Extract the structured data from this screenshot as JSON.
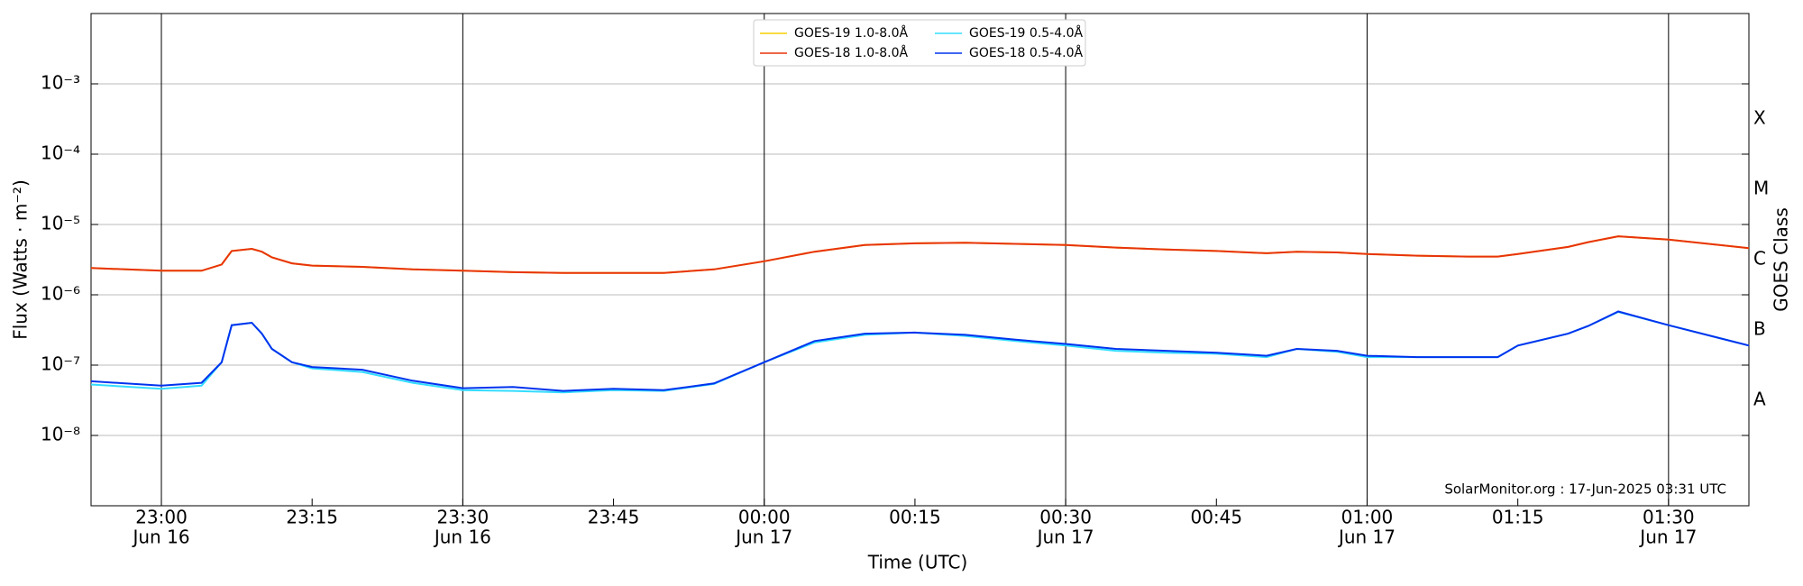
{
  "chart_data": {
    "type": "line",
    "x_label": "Time (UTC)",
    "y_label": "Flux (Watts · m⁻²)",
    "y2_label": "GOES Class",
    "annotation": "SolarMonitor.org : 17-Jun-2025 03:31 UTC",
    "log_scale": true,
    "grid": true,
    "legend": "top-center",
    "classes": [
      "A",
      "B",
      "C",
      "M",
      "X"
    ],
    "ylim": [
      1e-09,
      0.01
    ],
    "yticks": [
      {
        "value": 1e-08,
        "label": "10⁻⁸"
      },
      {
        "value": 1e-07,
        "label": "10⁻⁷"
      },
      {
        "value": 1e-06,
        "label": "10⁻⁶"
      },
      {
        "value": 1e-05,
        "label": "10⁻⁵"
      },
      {
        "value": 0.0001,
        "label": "10⁻⁴"
      },
      {
        "value": 0.001,
        "label": "10⁻³"
      }
    ],
    "xlim": [
      "Jun 16 22:53",
      "Jun 17 01:38"
    ],
    "xticks": [
      {
        "value": "Jun 16 23:00",
        "label": [
          "23:00",
          "Jun 16"
        ]
      },
      {
        "value": "Jun 16 23:15",
        "label": [
          "23:15"
        ]
      },
      {
        "value": "Jun 16 23:30",
        "label": [
          "23:30",
          "Jun 16"
        ]
      },
      {
        "value": "Jun 16 23:45",
        "label": [
          "23:45"
        ]
      },
      {
        "value": "Jun 17 00:00",
        "label": [
          "00:00",
          "Jun 17"
        ]
      },
      {
        "value": "Jun 17 00:15",
        "label": [
          "00:15"
        ]
      },
      {
        "value": "Jun 17 00:30",
        "label": [
          "00:30",
          "Jun 17"
        ]
      },
      {
        "value": "Jun 17 00:45",
        "label": [
          "00:45"
        ]
      },
      {
        "value": "Jun 17 01:00",
        "label": [
          "01:00",
          "Jun 17"
        ]
      },
      {
        "value": "Jun 17 01:15",
        "label": [
          "01:15"
        ]
      },
      {
        "value": "Jun 17 01:30",
        "label": [
          "01:30",
          "Jun 17"
        ]
      }
    ],
    "x": [
      "Jun 16 22:53",
      "Jun 16 23:00",
      "Jun 16 23:04",
      "Jun 16 23:06",
      "Jun 16 23:07",
      "Jun 16 23:09",
      "Jun 16 23:10",
      "Jun 16 23:11",
      "Jun 16 23:13",
      "Jun 16 23:15",
      "Jun 16 23:20",
      "Jun 16 23:25",
      "Jun 16 23:30",
      "Jun 16 23:35",
      "Jun 16 23:40",
      "Jun 16 23:45",
      "Jun 16 23:50",
      "Jun 16 23:55",
      "Jun 17 00:00",
      "Jun 17 00:05",
      "Jun 17 00:10",
      "Jun 17 00:15",
      "Jun 17 00:20",
      "Jun 17 00:25",
      "Jun 17 00:30",
      "Jun 17 00:35",
      "Jun 17 00:40",
      "Jun 17 00:45",
      "Jun 17 00:50",
      "Jun 17 00:53",
      "Jun 17 00:57",
      "Jun 17 01:00",
      "Jun 17 01:05",
      "Jun 17 01:10",
      "Jun 17 01:13",
      "Jun 17 01:15",
      "Jun 17 01:20",
      "Jun 17 01:22",
      "Jun 17 01:25",
      "Jun 17 01:30",
      "Jun 17 01:38"
    ],
    "series": [
      {
        "name": "GOES-19 1.0-8.0Å",
        "color": "#f5d000",
        "values": [
          2.4e-06,
          2.2e-06,
          2.2e-06,
          2.7e-06,
          4.2e-06,
          4.5e-06,
          4.1e-06,
          3.4e-06,
          2.8e-06,
          2.6e-06,
          2.5e-06,
          2.3e-06,
          2.2e-06,
          2.1e-06,
          2.05e-06,
          2.05e-06,
          2.05e-06,
          2.3e-06,
          3e-06,
          4.1e-06,
          5.1e-06,
          5.4e-06,
          5.5e-06,
          5.3e-06,
          5.1e-06,
          4.7e-06,
          4.4e-06,
          4.2e-06,
          3.9e-06,
          4.1e-06,
          4e-06,
          3.8e-06,
          3.6e-06,
          3.5e-06,
          3.5e-06,
          3.8e-06,
          4.8e-06,
          5.6e-06,
          6.8e-06,
          6.1e-06,
          4.6e-06
        ]
      },
      {
        "name": "GOES-18 1.0-8.0Å",
        "color": "#e8330c",
        "values": [
          2.4e-06,
          2.2e-06,
          2.2e-06,
          2.7e-06,
          4.2e-06,
          4.5e-06,
          4.1e-06,
          3.4e-06,
          2.8e-06,
          2.6e-06,
          2.5e-06,
          2.3e-06,
          2.2e-06,
          2.1e-06,
          2.05e-06,
          2.05e-06,
          2.05e-06,
          2.3e-06,
          3e-06,
          4.1e-06,
          5.1e-06,
          5.4e-06,
          5.5e-06,
          5.3e-06,
          5.1e-06,
          4.7e-06,
          4.4e-06,
          4.2e-06,
          3.9e-06,
          4.1e-06,
          4e-06,
          3.8e-06,
          3.6e-06,
          3.5e-06,
          3.5e-06,
          3.8e-06,
          4.8e-06,
          5.6e-06,
          6.8e-06,
          6.1e-06,
          4.6e-06
        ]
      },
      {
        "name": "GOES-19 0.5-4.0Å",
        "color": "#33ddff",
        "values": [
          5.3e-08,
          4.6e-08,
          5.1e-08,
          1.1e-07,
          3.7e-07,
          4e-07,
          2.8e-07,
          1.7e-07,
          1.1e-07,
          9e-08,
          8e-08,
          5.6e-08,
          4.4e-08,
          4.3e-08,
          4.1e-08,
          4.4e-08,
          4.3e-08,
          5.4e-08,
          1.1e-07,
          2.1e-07,
          2.7e-07,
          2.9e-07,
          2.6e-07,
          2.2e-07,
          1.9e-07,
          1.6e-07,
          1.5e-07,
          1.45e-07,
          1.3e-07,
          1.7e-07,
          1.55e-07,
          1.3e-07,
          1.3e-07,
          1.3e-07,
          1.3e-07,
          1.9e-07,
          2.8e-07,
          3.6e-07,
          5.7e-07,
          3.7e-07,
          1.9e-07
        ]
      },
      {
        "name": "GOES-18 0.5-4.0Å",
        "color": "#0033ee",
        "values": [
          5.9e-08,
          5.1e-08,
          5.6e-08,
          1.1e-07,
          3.7e-07,
          4e-07,
          2.8e-07,
          1.7e-07,
          1.1e-07,
          9.4e-08,
          8.6e-08,
          6e-08,
          4.7e-08,
          4.9e-08,
          4.3e-08,
          4.6e-08,
          4.4e-08,
          5.5e-08,
          1.1e-07,
          2.2e-07,
          2.8e-07,
          2.9e-07,
          2.7e-07,
          2.3e-07,
          2e-07,
          1.7e-07,
          1.6e-07,
          1.5e-07,
          1.36e-07,
          1.7e-07,
          1.6e-07,
          1.36e-07,
          1.3e-07,
          1.3e-07,
          1.3e-07,
          1.9e-07,
          2.8e-07,
          3.6e-07,
          5.8e-07,
          3.7e-07,
          1.9e-07
        ]
      }
    ]
  }
}
